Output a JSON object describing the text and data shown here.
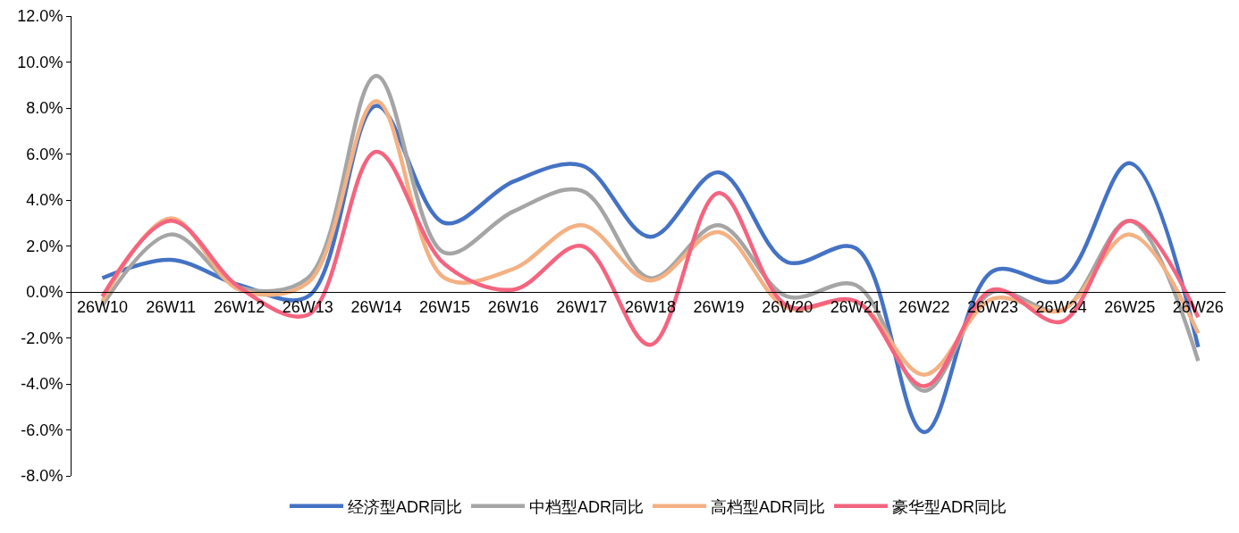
{
  "chart_data": {
    "type": "line",
    "categories": [
      "26W10",
      "26W11",
      "26W12",
      "26W13",
      "26W14",
      "26W15",
      "26W16",
      "26W17",
      "26W18",
      "26W19",
      "26W20",
      "26W21",
      "26W22",
      "26W23",
      "26W24",
      "26W25",
      "26W26"
    ],
    "series": [
      {
        "name": "经济型ADR同比",
        "color": "#4472c4",
        "values": [
          0.6,
          1.4,
          0.3,
          -0.2,
          8.1,
          3.0,
          4.8,
          5.5,
          2.4,
          5.2,
          1.3,
          1.9,
          -6.1,
          0.9,
          0.5,
          5.6,
          -2.4
        ]
      },
      {
        "name": "中档型ADR同比",
        "color": "#a5a5a5",
        "values": [
          -0.6,
          2.5,
          0.2,
          0.6,
          9.4,
          1.7,
          3.5,
          4.4,
          0.6,
          2.9,
          -0.2,
          0.3,
          -4.3,
          0.0,
          -0.8,
          3.1,
          -3.0
        ]
      },
      {
        "name": "高档型ADR同比",
        "color": "#f4b183",
        "values": [
          -0.4,
          3.2,
          0.1,
          0.4,
          8.3,
          0.6,
          1.0,
          2.9,
          0.5,
          2.6,
          -0.7,
          -0.4,
          -3.6,
          -0.3,
          -0.8,
          2.5,
          -1.8
        ]
      },
      {
        "name": "豪华型ADR同比",
        "color": "#f4647f",
        "values": [
          -0.2,
          3.1,
          0.2,
          -1.0,
          6.1,
          1.2,
          0.1,
          2.0,
          -2.3,
          4.3,
          -0.6,
          -0.4,
          -4.1,
          0.1,
          -1.3,
          3.1,
          -1.1
        ]
      }
    ],
    "ylim": [
      -8,
      12
    ],
    "yticks": [
      {
        "value": -8,
        "label": "-8.0%"
      },
      {
        "value": -6,
        "label": "-6.0%"
      },
      {
        "value": -4,
        "label": "-4.0%"
      },
      {
        "value": -2,
        "label": "-2.0%"
      },
      {
        "value": 0,
        "label": "0.0%"
      },
      {
        "value": 2,
        "label": "2.0%"
      },
      {
        "value": 4,
        "label": "4.0%"
      },
      {
        "value": 6,
        "label": "6.0%"
      },
      {
        "value": 8,
        "label": "8.0%"
      },
      {
        "value": 10,
        "label": "10.0%"
      },
      {
        "value": 12,
        "label": "12.0%"
      }
    ],
    "grid": false,
    "legend": "bottom",
    "marker": "none",
    "line_style": "solid"
  }
}
